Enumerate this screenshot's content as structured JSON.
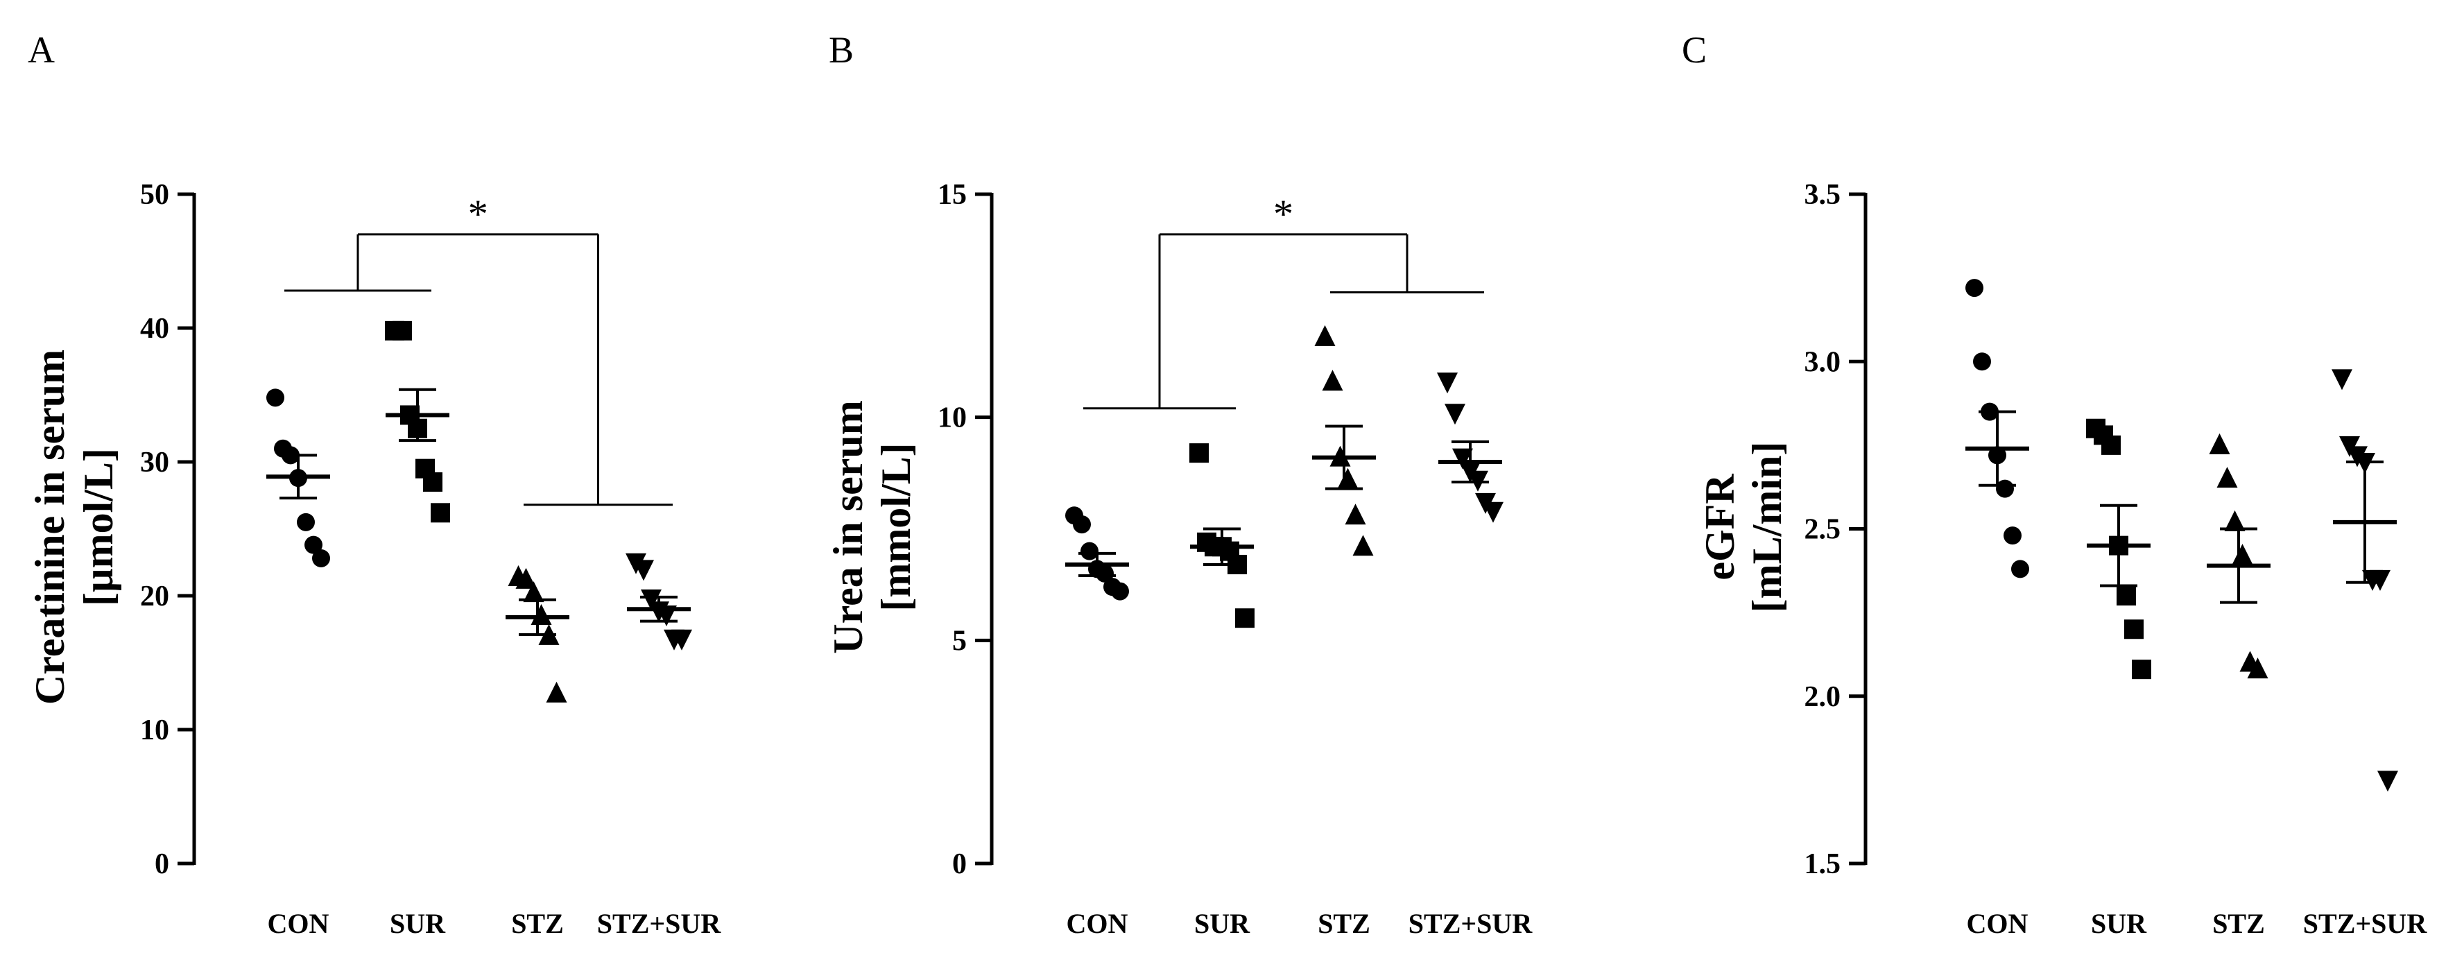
{
  "chart_data": [
    {
      "panel": "A",
      "type": "scatter",
      "ylabel_line1": "Creatinine in serum",
      "ylabel_line2": "[µmol/L]",
      "categories": [
        "CON",
        "SUR",
        "STZ",
        "STZ+SUR"
      ],
      "ylim": [
        0,
        50
      ],
      "yticks": [
        0,
        10,
        20,
        30,
        40,
        50
      ],
      "ytick_labels": [
        "0",
        "10",
        "20",
        "30",
        "40",
        "50"
      ],
      "marker_shapes": [
        "circle",
        "square",
        "triangle-up",
        "triangle-down"
      ],
      "points": [
        [
          34.8,
          31.0,
          30.5,
          28.8,
          25.5,
          23.8,
          22.8
        ],
        [
          39.8,
          39.8,
          33.5,
          32.5,
          29.5,
          28.5,
          26.2
        ],
        [
          21.4,
          21.2,
          20.2,
          18.5,
          17.0,
          12.7
        ],
        [
          22.5,
          22.0,
          19.8,
          18.9,
          18.6,
          16.8,
          16.8
        ]
      ],
      "mean": [
        28.9,
        33.5,
        18.4,
        19.0
      ],
      "sem": [
        1.6,
        1.9,
        1.3,
        0.9
      ],
      "significance": {
        "label": "*",
        "left_group": [
          0,
          1
        ],
        "right_group": [
          2,
          3
        ],
        "left_y": 42.8,
        "right_y": 26.8,
        "top_y": 47.0
      }
    },
    {
      "panel": "B",
      "type": "scatter",
      "ylabel_line1": "Urea in serum",
      "ylabel_line2": "[mmol/L]",
      "categories": [
        "CON",
        "SUR",
        "STZ",
        "STZ+SUR"
      ],
      "ylim": [
        0,
        15
      ],
      "yticks": [
        0,
        5,
        10,
        15
      ],
      "ytick_labels": [
        "0",
        "5",
        "10",
        "15"
      ],
      "marker_shapes": [
        "circle",
        "square",
        "triangle-up",
        "triangle-down"
      ],
      "points": [
        [
          7.8,
          7.6,
          7.0,
          6.6,
          6.5,
          6.2,
          6.1
        ],
        [
          9.2,
          7.2,
          7.1,
          7.1,
          7.0,
          6.7,
          5.5
        ],
        [
          11.8,
          10.8,
          9.1,
          8.6,
          7.8,
          7.1
        ],
        [
          10.8,
          10.1,
          9.1,
          8.8,
          8.6,
          8.1,
          7.9
        ]
      ],
      "mean": [
        6.7,
        7.1,
        9.1,
        9.0
      ],
      "sem": [
        0.25,
        0.4,
        0.7,
        0.45
      ],
      "significance": {
        "label": "*",
        "left_group": [
          0,
          1
        ],
        "right_group": [
          2,
          3
        ],
        "left_y": 10.2,
        "right_y": 12.8,
        "top_y": 14.1
      }
    },
    {
      "panel": "C",
      "type": "scatter",
      "ylabel_line1": "eGFR",
      "ylabel_line2": "[mL/min]",
      "categories": [
        "CON",
        "SUR",
        "STZ",
        "STZ+SUR"
      ],
      "ylim": [
        1.5,
        3.5
      ],
      "yticks": [
        1.5,
        2.0,
        2.5,
        3.0,
        3.5
      ],
      "ytick_labels": [
        "1.5",
        "2.0",
        "2.5",
        "3.0",
        "3.5"
      ],
      "marker_shapes": [
        "circle",
        "square",
        "triangle-up",
        "triangle-down"
      ],
      "points": [
        [
          3.22,
          3.0,
          2.85,
          2.72,
          2.62,
          2.48,
          2.38
        ],
        [
          2.8,
          2.78,
          2.75,
          2.45,
          2.3,
          2.2,
          2.08
        ],
        [
          2.75,
          2.65,
          2.52,
          2.42,
          2.1,
          2.08
        ],
        [
          2.95,
          2.75,
          2.72,
          2.7,
          2.35,
          2.35,
          1.75
        ]
      ],
      "mean": [
        2.74,
        2.45,
        2.39,
        2.52
      ],
      "sem": [
        0.11,
        0.12,
        0.11,
        0.18
      ]
    }
  ]
}
